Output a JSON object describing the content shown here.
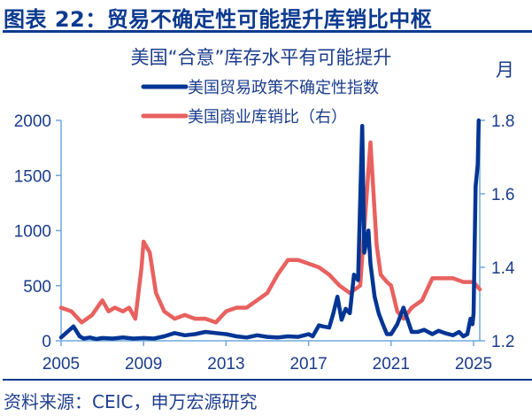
{
  "figure": {
    "title": "图表 22：贸易不确定性可能提升库销比中枢",
    "source": "资料来源：CEIC，申万宏源研究"
  },
  "colors": {
    "primary": "#0b3a8f",
    "axis": "#6fa8dc",
    "series_tpu": "#003594",
    "series_isr": "#e8615f"
  },
  "chart_data": {
    "type": "line",
    "title": "美国“合意”库存水平有可能提升",
    "right_axis_unit": "月",
    "xlabel": "",
    "ylabel_left": "",
    "ylabel_right": "月",
    "x_ticks": [
      "2005",
      "2009",
      "2013",
      "2017",
      "2021",
      "2025"
    ],
    "ylim_left": [
      0,
      2000
    ],
    "yticks_left": [
      "0",
      "500",
      "1000",
      "1500",
      "2000"
    ],
    "ylim_right": [
      1.2,
      1.8
    ],
    "yticks_right": [
      "1.2",
      "1.4",
      "1.6",
      "1.8"
    ],
    "grid": false,
    "legend_position": "top-center",
    "legend": [
      "美国贸易政策不确定性指数",
      "美国商业库销比（右）"
    ],
    "series": [
      {
        "name": "美国贸易政策不确定性指数",
        "axis": "left",
        "x": [
          2005.0,
          2005.3,
          2005.6,
          2005.9,
          2006.1,
          2006.4,
          2006.7,
          2007.0,
          2007.5,
          2008.0,
          2008.5,
          2009.0,
          2009.5,
          2010.0,
          2010.5,
          2011.0,
          2011.5,
          2012.0,
          2012.5,
          2013.0,
          2013.5,
          2014.0,
          2014.5,
          2015.0,
          2015.5,
          2016.0,
          2016.5,
          2016.8,
          2017.0,
          2017.2,
          2017.5,
          2017.7,
          2018.0,
          2018.2,
          2018.4,
          2018.6,
          2018.8,
          2019.0,
          2019.2,
          2019.4,
          2019.6,
          2019.7,
          2019.9,
          2020.0,
          2020.2,
          2020.4,
          2020.6,
          2020.8,
          2021.0,
          2021.3,
          2021.6,
          2022.0,
          2022.3,
          2022.6,
          2023.0,
          2023.3,
          2023.6,
          2024.0,
          2024.3,
          2024.5,
          2024.7,
          2024.85,
          2024.95,
          2025.0,
          2025.1,
          2025.2,
          2025.25
        ],
        "values": [
          30,
          80,
          130,
          40,
          20,
          30,
          15,
          25,
          20,
          30,
          20,
          25,
          20,
          40,
          70,
          50,
          60,
          80,
          70,
          60,
          40,
          30,
          50,
          35,
          30,
          40,
          35,
          50,
          60,
          40,
          140,
          130,
          120,
          250,
          400,
          190,
          290,
          250,
          600,
          550,
          1950,
          800,
          1000,
          700,
          400,
          250,
          150,
          60,
          60,
          150,
          300,
          80,
          80,
          100,
          60,
          90,
          70,
          50,
          80,
          40,
          60,
          200,
          150,
          250,
          1400,
          1600,
          2000
        ]
      },
      {
        "name": "美国商业库销比（右）",
        "axis": "right",
        "x": [
          2005.0,
          2005.5,
          2006.0,
          2006.5,
          2007.0,
          2007.3,
          2007.6,
          2008.0,
          2008.3,
          2008.6,
          2008.9,
          2009.0,
          2009.3,
          2009.6,
          2010.0,
          2010.5,
          2011.0,
          2011.5,
          2012.0,
          2012.5,
          2013.0,
          2013.5,
          2014.0,
          2014.5,
          2015.0,
          2015.5,
          2016.0,
          2016.5,
          2017.0,
          2017.5,
          2018.0,
          2018.5,
          2019.0,
          2019.5,
          2020.0,
          2020.3,
          2020.5,
          2020.8,
          2021.0,
          2021.3,
          2021.6,
          2022.0,
          2022.5,
          2023.0,
          2023.5,
          2024.0,
          2024.5,
          2025.0,
          2025.3
        ],
        "values": [
          1.29,
          1.28,
          1.25,
          1.27,
          1.31,
          1.28,
          1.29,
          1.28,
          1.29,
          1.26,
          1.4,
          1.47,
          1.44,
          1.33,
          1.28,
          1.26,
          1.27,
          1.26,
          1.26,
          1.25,
          1.28,
          1.29,
          1.29,
          1.31,
          1.33,
          1.38,
          1.42,
          1.42,
          1.41,
          1.4,
          1.38,
          1.35,
          1.33,
          1.35,
          1.74,
          1.46,
          1.38,
          1.36,
          1.35,
          1.28,
          1.26,
          1.29,
          1.31,
          1.37,
          1.37,
          1.37,
          1.36,
          1.36,
          1.34
        ]
      }
    ]
  }
}
